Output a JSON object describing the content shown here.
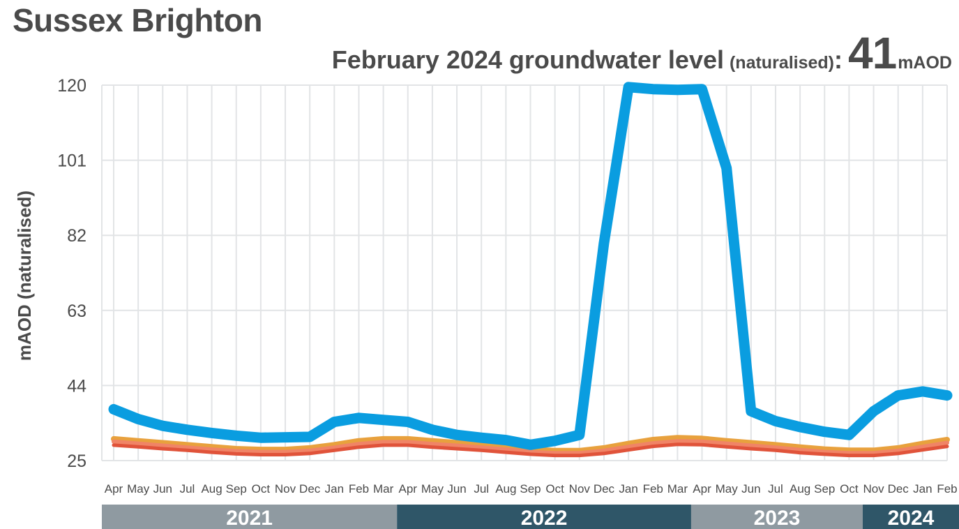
{
  "title": "Sussex Brighton",
  "subtitle": {
    "main": "February 2024 groundwater level",
    "qualifier": "(naturalised)",
    "colon": ":",
    "value": "41",
    "unit": "mAOD"
  },
  "chart_data": {
    "type": "line",
    "ylabel": "mAOD (naturalised)",
    "ylim": [
      25,
      120
    ],
    "yticks": [
      25,
      44,
      63,
      82,
      101,
      120
    ],
    "grid": true,
    "categories": [
      "Apr",
      "May",
      "Jun",
      "Jul",
      "Aug",
      "Sep",
      "Oct",
      "Nov",
      "Dec",
      "Jan",
      "Feb",
      "Mar",
      "Apr",
      "May",
      "Jun",
      "Jul",
      "Aug",
      "Sep",
      "Oct",
      "Nov",
      "Dec",
      "Jan",
      "Feb",
      "Mar",
      "Apr",
      "May",
      "Jun",
      "Jul",
      "Aug",
      "Sep",
      "Oct",
      "Nov",
      "Dec",
      "Jan",
      "Feb"
    ],
    "year_bands": [
      {
        "label": "2021",
        "start": 0,
        "end": 11,
        "color": "#8f9aa1"
      },
      {
        "label": "2022",
        "start": 12,
        "end": 23,
        "color": "#2f5668"
      },
      {
        "label": "2023",
        "start": 24,
        "end": 30,
        "color": "#8f9aa1"
      },
      {
        "label": "2024",
        "start": 31,
        "end": 34,
        "color": "#2f5668"
      }
    ],
    "series": [
      {
        "color": "#e8a13d",
        "width": 8,
        "values": [
          30.5,
          30.0,
          29.5,
          29.0,
          28.5,
          28.0,
          27.8,
          27.8,
          28.2,
          29.0,
          30.0,
          30.5,
          30.5,
          30.0,
          29.5,
          29.0,
          28.5,
          27.8,
          27.5,
          27.5,
          28.2,
          29.3,
          30.3,
          30.8,
          30.6,
          30.0,
          29.5,
          29.0,
          28.4,
          27.9,
          27.6,
          27.6,
          28.2,
          29.3,
          30.3
        ]
      },
      {
        "color": "#f08466",
        "width": 6,
        "values": [
          29.8,
          29.3,
          28.8,
          28.3,
          27.8,
          27.4,
          27.2,
          27.2,
          27.5,
          28.3,
          29.2,
          29.7,
          29.7,
          29.2,
          28.8,
          28.3,
          27.8,
          27.2,
          26.9,
          26.9,
          27.5,
          28.5,
          29.4,
          29.9,
          29.8,
          29.3,
          28.8,
          28.3,
          27.7,
          27.2,
          26.9,
          26.9,
          27.5,
          28.5,
          29.5
        ]
      },
      {
        "color": "#e0533a",
        "width": 5,
        "values": [
          28.9,
          28.5,
          28.0,
          27.6,
          27.1,
          26.7,
          26.5,
          26.5,
          26.8,
          27.6,
          28.4,
          28.9,
          28.9,
          28.4,
          28.0,
          27.6,
          27.1,
          26.6,
          26.3,
          26.3,
          26.8,
          27.7,
          28.6,
          29.1,
          29.0,
          28.5,
          28.0,
          27.6,
          27.0,
          26.6,
          26.3,
          26.3,
          26.8,
          27.7,
          28.6
        ]
      },
      {
        "color": "#0a9de0",
        "width": 15,
        "values": [
          38.0,
          35.5,
          33.8,
          32.8,
          32.0,
          31.3,
          30.8,
          30.9,
          31.0,
          34.8,
          35.8,
          35.3,
          34.8,
          32.8,
          31.5,
          30.8,
          30.2,
          29.0,
          30.0,
          31.5,
          80.0,
          119.5,
          119.0,
          118.8,
          119.0,
          99.0,
          37.5,
          35.0,
          33.5,
          32.3,
          31.5,
          37.5,
          41.5,
          42.5,
          41.5
        ]
      }
    ]
  }
}
